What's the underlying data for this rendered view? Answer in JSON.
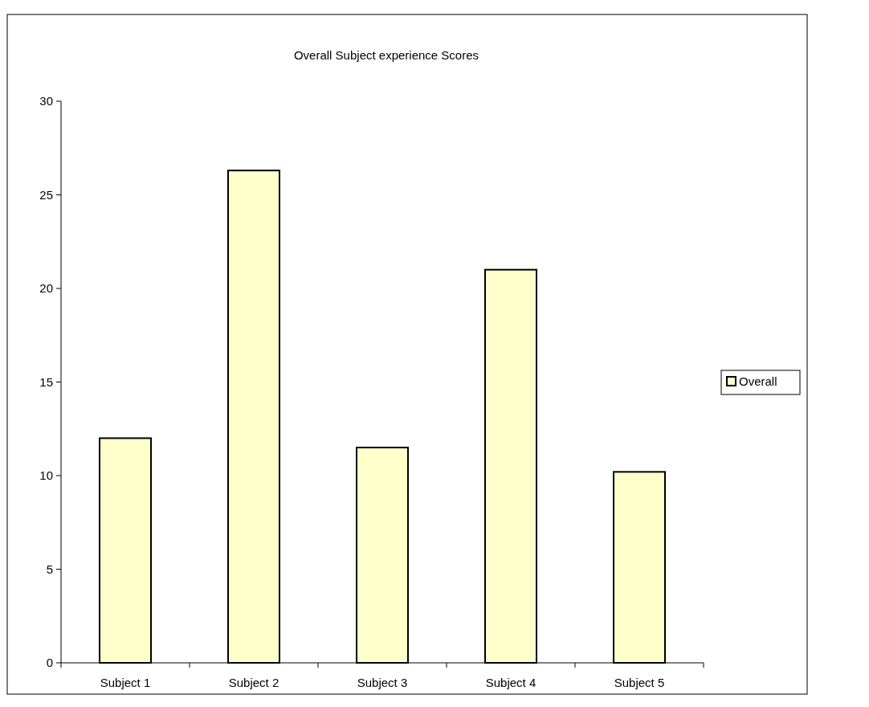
{
  "chart_data": {
    "type": "bar",
    "title": "Overall Subject experience Scores",
    "categories": [
      "Subject 1",
      "Subject 2",
      "Subject 3",
      "Subject 4",
      "Subject 5"
    ],
    "series": [
      {
        "name": "Overall",
        "color": "#ffffcc",
        "values": [
          12,
          26.3,
          11.5,
          21,
          10.2
        ]
      }
    ],
    "ylim": [
      0,
      30
    ],
    "yticks": [
      0,
      5,
      10,
      15,
      20,
      25,
      30
    ],
    "grid": false,
    "legend": "right"
  }
}
